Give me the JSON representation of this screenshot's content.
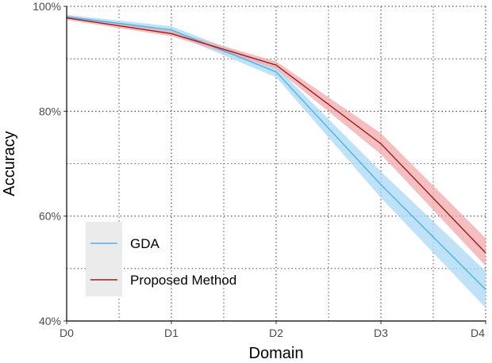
{
  "chart_data": {
    "type": "line",
    "categories": [
      "D0",
      "D1",
      "D2",
      "D3",
      "D4"
    ],
    "xlabel": "Domain",
    "ylabel": "Accuracy",
    "ylim": [
      40,
      100
    ],
    "y_ticks": [
      40,
      60,
      80,
      100
    ],
    "y_tick_labels": [
      "40%",
      "60%",
      "80%",
      "100%"
    ],
    "grid": true,
    "legend_position": "bottom-left",
    "series": [
      {
        "name": "GDA",
        "color": "#4bb3e6",
        "band_color": "#a9d8f5",
        "values": [
          98,
          95.5,
          87.5,
          66,
          46
        ],
        "lower": [
          97.6,
          94.8,
          86.5,
          63.5,
          42.5
        ],
        "upper": [
          98.4,
          96.2,
          88.5,
          68.5,
          49.5
        ]
      },
      {
        "name": "Proposed Method",
        "color": "#9b1c1c",
        "band_color": "#f2a8ab",
        "values": [
          97.8,
          94.8,
          88.8,
          73.8,
          53
        ],
        "lower": [
          97.4,
          94.3,
          88.1,
          71.8,
          50.5
        ],
        "upper": [
          98.2,
          95.3,
          89.5,
          75.8,
          55.8
        ]
      }
    ]
  }
}
